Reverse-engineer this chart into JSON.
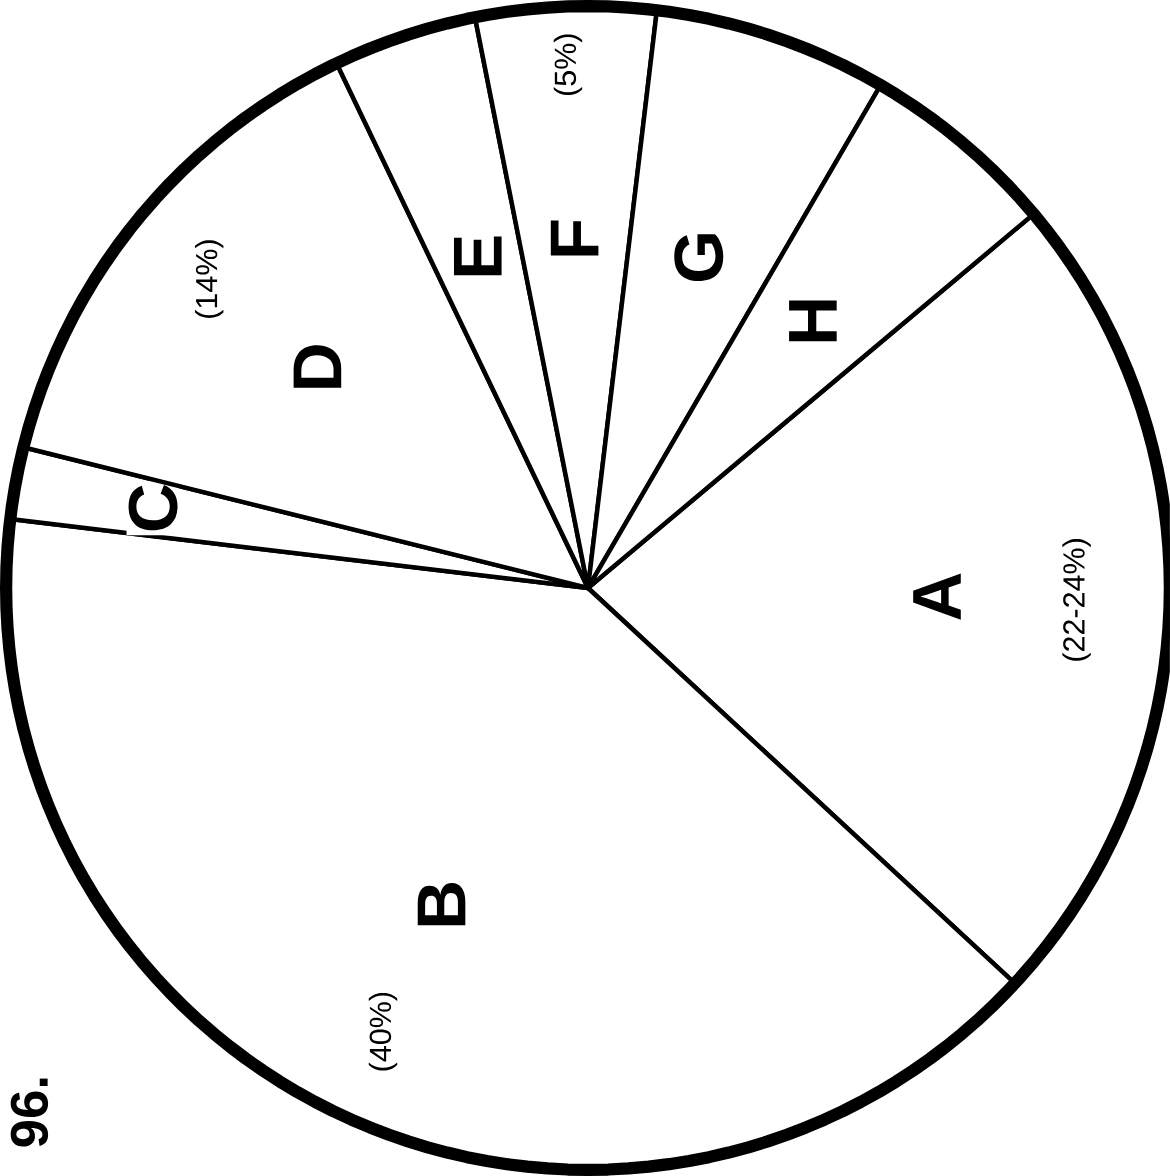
{
  "chart_data": {
    "type": "pie",
    "categories": [
      "A",
      "B",
      "C",
      "D",
      "E",
      "F",
      "G",
      "H"
    ],
    "values": [
      23,
      40,
      2,
      14,
      4,
      5,
      6.5,
      5.5
    ],
    "value_labels": [
      null,
      "(40%)",
      null,
      "(14%)",
      null,
      "(5%)",
      null,
      null
    ],
    "colors": [
      "#ffffff",
      "#ffffff",
      "#ffffff",
      "#ffffff",
      "#ffffff",
      "#ffffff",
      "#ffffff",
      "#ffffff"
    ],
    "annotations": [
      {
        "text": "(22-24%)",
        "x": "A"
      },
      "96."
    ]
  }
}
